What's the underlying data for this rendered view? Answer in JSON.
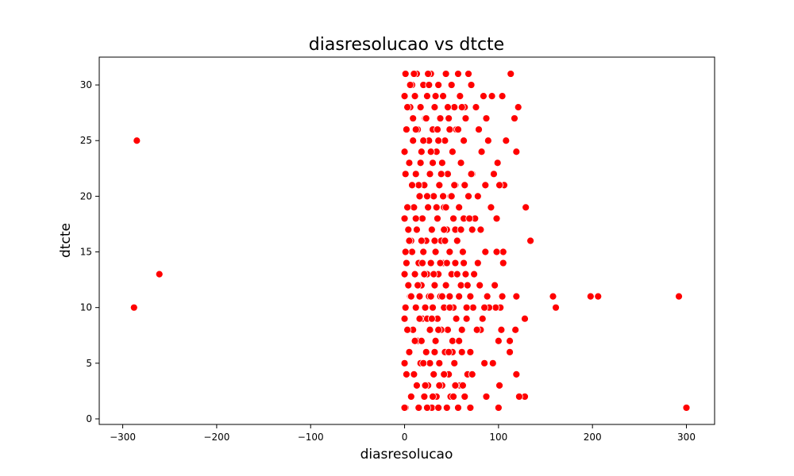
{
  "chart_data": {
    "type": "scatter",
    "title": "diasresolucao vs dtcte",
    "xlabel": "diasresolucao",
    "ylabel": "dtcte",
    "xlim": [
      -325,
      330
    ],
    "ylim": [
      -0.5,
      32.5
    ],
    "xticks": [
      -300,
      -200,
      -100,
      0,
      100,
      200,
      300
    ],
    "yticks": [
      0,
      5,
      10,
      15,
      20,
      25,
      30
    ],
    "grid": false,
    "marker_color": "#ff0000",
    "marker_edge_color": "#ffffff",
    "series": [
      {
        "points": [
          [
            -288,
            10
          ],
          [
            -285,
            25
          ],
          [
            -261,
            13
          ],
          [
            158,
            11
          ],
          [
            161,
            10
          ],
          [
            198,
            11
          ],
          [
            206,
            11
          ],
          [
            292,
            11
          ],
          [
            300,
            1
          ],
          [
            134,
            16
          ],
          [
            129,
            19
          ],
          [
            128,
            2
          ],
          [
            128,
            9
          ],
          [
            122,
            2
          ],
          [
            121,
            28
          ],
          [
            119,
            4
          ],
          [
            119,
            11
          ],
          [
            119,
            24
          ],
          [
            118,
            8
          ],
          [
            117,
            27
          ],
          [
            113,
            31
          ],
          [
            112,
            7
          ],
          [
            112,
            6
          ],
          [
            108,
            25
          ],
          [
            106,
            21
          ],
          [
            105,
            14
          ],
          [
            105,
            15
          ],
          [
            104,
            29
          ],
          [
            104,
            11
          ],
          [
            103,
            8
          ],
          [
            102,
            10
          ],
          [
            101,
            21
          ],
          [
            101,
            3
          ],
          [
            100,
            1
          ],
          [
            100,
            7
          ],
          [
            99,
            23
          ],
          [
            98,
            18
          ],
          [
            98,
            15
          ],
          [
            97,
            10
          ],
          [
            96,
            12
          ],
          [
            95,
            22
          ],
          [
            94,
            5
          ],
          [
            93,
            29
          ],
          [
            92,
            19
          ],
          [
            90,
            10
          ],
          [
            89,
            25
          ],
          [
            88,
            11
          ],
          [
            87,
            27
          ],
          [
            87,
            2
          ],
          [
            86,
            21
          ],
          [
            86,
            15
          ],
          [
            85,
            10
          ],
          [
            85,
            5
          ],
          [
            84,
            29
          ],
          [
            83,
            9
          ],
          [
            82,
            24
          ],
          [
            81,
            17
          ],
          [
            81,
            8
          ],
          [
            80,
            12
          ],
          [
            79,
            26
          ],
          [
            78,
            14
          ],
          [
            78,
            20
          ],
          [
            77,
            8
          ],
          [
            76,
            28
          ],
          [
            75,
            18
          ],
          [
            74,
            13
          ],
          [
            73,
            10
          ],
          [
            72,
            17
          ],
          [
            72,
            22
          ],
          [
            71,
            30
          ],
          [
            70,
            11
          ],
          [
            70,
            6
          ],
          [
            70,
            1
          ],
          [
            68,
            31
          ],
          [
            67,
            4
          ],
          [
            66,
            10
          ],
          [
            65,
            27
          ],
          [
            65,
            13
          ],
          [
            64,
            21
          ],
          [
            64,
            2
          ],
          [
            63,
            25
          ],
          [
            63,
            18
          ],
          [
            62,
            15
          ],
          [
            61,
            8
          ],
          [
            61,
            6
          ],
          [
            60,
            23
          ],
          [
            60,
            12
          ],
          [
            59,
            29
          ],
          [
            59,
            3
          ],
          [
            58,
            19
          ],
          [
            58,
            11
          ],
          [
            57,
            31
          ],
          [
            57,
            1
          ],
          [
            56,
            16
          ],
          [
            55,
            26
          ],
          [
            55,
            9
          ],
          [
            54,
            21
          ],
          [
            54,
            14
          ],
          [
            53,
            28
          ],
          [
            53,
            5
          ],
          [
            52,
            18
          ],
          [
            52,
            10
          ],
          [
            51,
            24
          ],
          [
            51,
            7
          ],
          [
            50,
            30
          ],
          [
            50,
            13
          ],
          [
            49,
            2
          ],
          [
            49,
            20
          ],
          [
            48,
            15
          ],
          [
            48,
            11
          ],
          [
            47,
            27
          ],
          [
            47,
            4
          ],
          [
            46,
            22
          ],
          [
            46,
            8
          ],
          [
            45,
            17
          ],
          [
            45,
            1
          ],
          [
            44,
            31
          ],
          [
            44,
            12
          ],
          [
            43,
            25
          ],
          [
            43,
            6
          ],
          [
            42,
            19
          ],
          [
            42,
            10
          ],
          [
            41,
            29
          ],
          [
            41,
            14
          ],
          [
            40,
            3
          ],
          [
            40,
            23
          ],
          [
            39,
            16
          ],
          [
            39,
            8
          ],
          [
            38,
            27
          ],
          [
            38,
            11
          ],
          [
            37,
            21
          ],
          [
            37,
            5
          ],
          [
            36,
            30
          ],
          [
            36,
            13
          ],
          [
            35,
            18
          ],
          [
            35,
            9
          ],
          [
            34,
            24
          ],
          [
            34,
            2
          ],
          [
            33,
            15
          ],
          [
            33,
            7
          ],
          [
            32,
            28
          ],
          [
            32,
            12
          ],
          [
            31,
            20
          ],
          [
            31,
            4
          ],
          [
            30,
            26
          ],
          [
            30,
            10
          ],
          [
            29,
            17
          ],
          [
            29,
            1
          ],
          [
            28,
            31
          ],
          [
            28,
            14
          ],
          [
            27,
            22
          ],
          [
            27,
            8
          ],
          [
            26,
            25
          ],
          [
            26,
            11
          ],
          [
            25,
            19
          ],
          [
            25,
            3
          ],
          [
            24,
            29
          ],
          [
            24,
            13
          ],
          [
            23,
            16
          ],
          [
            23,
            6
          ],
          [
            22,
            27
          ],
          [
            22,
            10
          ],
          [
            21,
            21
          ],
          [
            21,
            2
          ],
          [
            20,
            30
          ],
          [
            20,
            15
          ],
          [
            19,
            18
          ],
          [
            19,
            9
          ],
          [
            18,
            24
          ],
          [
            18,
            12
          ],
          [
            17,
            28
          ],
          [
            17,
            5
          ],
          [
            16,
            20
          ],
          [
            16,
            11
          ],
          [
            15,
            14
          ],
          [
            15,
            1
          ],
          [
            14,
            26
          ],
          [
            14,
            7
          ],
          [
            13,
            31
          ],
          [
            13,
            17
          ],
          [
            12,
            22
          ],
          [
            12,
            10
          ],
          [
            11,
            29
          ],
          [
            11,
            13
          ],
          [
            10,
            19
          ],
          [
            10,
            4
          ],
          [
            9,
            25
          ],
          [
            9,
            8
          ],
          [
            8,
            30
          ],
          [
            8,
            15
          ],
          [
            7,
            16
          ],
          [
            7,
            2
          ],
          [
            6,
            28
          ],
          [
            6,
            11
          ],
          [
            5,
            23
          ],
          [
            5,
            6
          ],
          [
            4,
            17
          ],
          [
            4,
            12
          ],
          [
            3,
            28
          ],
          [
            3,
            19
          ],
          [
            3,
            8
          ],
          [
            2,
            26
          ],
          [
            2,
            14
          ],
          [
            2,
            4
          ],
          [
            1,
            31
          ],
          [
            1,
            22
          ],
          [
            1,
            15
          ],
          [
            1,
            10
          ],
          [
            1,
            1
          ],
          [
            0,
            29
          ],
          [
            0,
            24
          ],
          [
            0,
            18
          ],
          [
            0,
            13
          ],
          [
            0,
            9
          ],
          [
            0,
            5
          ],
          [
            0,
            1
          ],
          [
            6,
            30
          ],
          [
            9,
            27
          ],
          [
            12,
            26
          ],
          [
            15,
            21
          ],
          [
            18,
            16
          ],
          [
            21,
            13
          ],
          [
            24,
            9
          ],
          [
            27,
            5
          ],
          [
            30,
            2
          ],
          [
            33,
            29
          ],
          [
            36,
            25
          ],
          [
            39,
            22
          ],
          [
            42,
            17
          ],
          [
            45,
            14
          ],
          [
            48,
            10
          ],
          [
            51,
            6
          ],
          [
            54,
            3
          ],
          [
            10,
            31
          ],
          [
            14,
            12
          ],
          [
            18,
            7
          ],
          [
            22,
            3
          ],
          [
            26,
            30
          ],
          [
            30,
            23
          ],
          [
            34,
            19
          ],
          [
            38,
            14
          ],
          [
            42,
            4
          ],
          [
            46,
            28
          ],
          [
            50,
            20
          ],
          [
            54,
            17
          ],
          [
            58,
            7
          ],
          [
            62,
            3
          ],
          [
            66,
            9
          ],
          [
            20,
            25
          ],
          [
            24,
            20
          ],
          [
            28,
            11
          ],
          [
            32,
            6
          ],
          [
            36,
            1
          ],
          [
            8,
            21
          ],
          [
            12,
            18
          ],
          [
            16,
            9
          ],
          [
            20,
            5
          ],
          [
            24,
            1
          ],
          [
            28,
            24
          ],
          [
            32,
            16
          ],
          [
            36,
            8
          ],
          [
            40,
            11
          ],
          [
            44,
            19
          ],
          [
            48,
            26
          ],
          [
            52,
            2
          ],
          [
            56,
            13
          ],
          [
            60,
            17
          ],
          [
            64,
            28
          ],
          [
            68,
            20
          ],
          [
            72,
            4
          ],
          [
            5,
            16
          ],
          [
            7,
            11
          ],
          [
            11,
            7
          ],
          [
            13,
            3
          ],
          [
            17,
            23
          ],
          [
            19,
            14
          ],
          [
            23,
            27
          ],
          [
            25,
            31
          ],
          [
            29,
            9
          ],
          [
            31,
            13
          ],
          [
            35,
            26
          ],
          [
            37,
            3
          ],
          [
            41,
            20
          ],
          [
            43,
            16
          ],
          [
            47,
            6
          ],
          [
            53,
            21
          ],
          [
            57,
            26
          ],
          [
            61,
            28
          ],
          [
            63,
            14
          ],
          [
            67,
            12
          ],
          [
            69,
            18
          ],
          [
            71,
            22
          ]
        ]
      }
    ]
  }
}
